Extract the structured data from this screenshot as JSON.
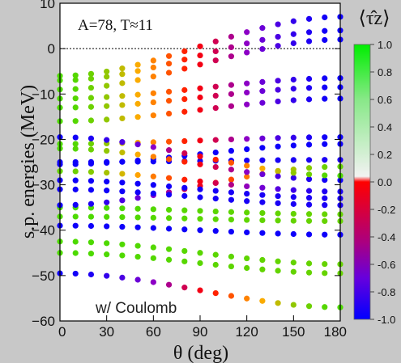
{
  "chart_data": {
    "type": "scatter",
    "xlabel": "θ (deg)",
    "ylabel": "s.p. energies (MeV)",
    "annotations": [
      "A=78, T≈11",
      "w/ Coulomb"
    ],
    "xlim": [
      0,
      180
    ],
    "ylim": [
      -60,
      10
    ],
    "xticks": [
      "0",
      "30",
      "60",
      "90",
      "120",
      "150",
      "180"
    ],
    "yticks": [
      "10",
      "0",
      "−10",
      "−20",
      "−30",
      "−40",
      "−50",
      "−60"
    ],
    "grid": false,
    "reference_line_y": 0,
    "colorbar": {
      "title": "⟨τ̂z⟩",
      "range": [
        -1.0,
        1.0
      ],
      "ticks": [
        "1.0",
        "0.8",
        "0.6",
        "0.4",
        "0.2",
        "0.0",
        "-0.2",
        "-0.4",
        "-0.6",
        "-0.8",
        "-1.0"
      ],
      "colors": [
        "#00ee00",
        "#ffaa00",
        "#ff0000",
        "#8800cc",
        "#0000ff"
      ]
    },
    "x": [
      0,
      10,
      20,
      30,
      40,
      50,
      60,
      70,
      80,
      90,
      100,
      110,
      120,
      130,
      140,
      150,
      160,
      170,
      180
    ],
    "series": [
      {
        "y0": -49.5,
        "y1": -57.0,
        "tz0": -0.95,
        "tz1": 0.85
      },
      {
        "y0": -45.0,
        "y1": -49.5,
        "tz0": 0.85,
        "tz1": 0.8
      },
      {
        "y0": -42.5,
        "y1": -47.5,
        "tz0": 0.85,
        "tz1": 0.8
      },
      {
        "y0": -39.0,
        "y1": -41.0,
        "tz0": -0.95,
        "tz1": -0.95
      },
      {
        "y0": -37.0,
        "y1": -38.0,
        "tz0": 0.85,
        "tz1": 0.8
      },
      {
        "y0": -35.0,
        "y1": -36.5,
        "tz0": 0.85,
        "tz1": 0.8
      },
      {
        "y0": -34.5,
        "y1": -26.0,
        "tz0": -0.95,
        "tz1": 0.8
      },
      {
        "y0": -31.0,
        "y1": -34.5,
        "tz0": -0.95,
        "tz1": -0.9
      },
      {
        "y0": -29.0,
        "y1": -33.0,
        "tz0": -0.95,
        "tz1": -0.9
      },
      {
        "y0": -27.0,
        "y1": -31.5,
        "tz0": 0.8,
        "tz1": -0.9
      },
      {
        "y0": -25.0,
        "y1": -24.5,
        "tz0": -0.95,
        "tz1": -0.9
      },
      {
        "y0": -25.5,
        "y1": -21.0,
        "tz0": -0.95,
        "tz1": -0.95
      },
      {
        "y0": -22.0,
        "y1": -29.0,
        "tz0": 0.85,
        "tz1": -0.95
      },
      {
        "y0": -21.0,
        "y1": -19.5,
        "tz0": 0.85,
        "tz1": -0.95
      },
      {
        "y0": -19.5,
        "y1": -28.0,
        "tz0": -0.95,
        "tz1": 0.85
      },
      {
        "y0": -16.0,
        "y1": -11.0,
        "tz0": 0.85,
        "tz1": -0.95
      },
      {
        "y0": -13.0,
        "y1": -8.5,
        "tz0": 0.85,
        "tz1": -0.95
      },
      {
        "y0": -11.0,
        "y1": -6.5,
        "tz0": 0.85,
        "tz1": -0.95
      },
      {
        "y0": -9.0,
        "y1": 2.0,
        "tz0": 0.85,
        "tz1": -0.95
      },
      {
        "y0": -7.0,
        "y1": 4.0,
        "tz0": 0.85,
        "tz1": -0.95
      },
      {
        "y0": -6.0,
        "y1": 7.0,
        "tz0": 0.85,
        "tz1": -0.95
      }
    ]
  }
}
